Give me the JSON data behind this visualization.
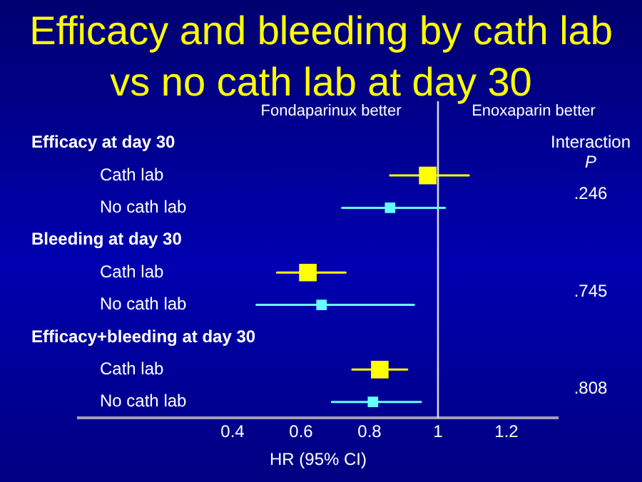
{
  "chart_data": {
    "type": "scatter",
    "title": "Efficacy and bleeding by cath lab vs no cath lab at day 30",
    "xlabel": "HR (95% CI)",
    "categories": [
      "Efficacy at day 30",
      "Cath lab",
      "No cath lab",
      "Bleeding at day 30",
      "Cath lab",
      "No cath lab",
      "Efficacy+bleeding at day 30",
      "Cath lab",
      "No cath lab"
    ],
    "series": [
      {
        "color": "#ffff00",
        "marker": "square",
        "values": [
          null,
          0.97,
          null,
          null,
          0.62,
          null,
          null,
          0.83,
          null
        ],
        "errors": [
          null,
          [
            0.86,
            1.09
          ],
          null,
          null,
          [
            0.53,
            0.73
          ],
          null,
          null,
          [
            0.75,
            0.91
          ],
          null
        ]
      },
      {
        "color": "#66ffff",
        "marker": "square",
        "values": [
          null,
          null,
          0.86,
          null,
          null,
          0.66,
          null,
          null,
          0.81
        ],
        "errors": [
          null,
          null,
          [
            0.72,
            1.02
          ],
          null,
          null,
          [
            0.47,
            0.93
          ],
          null,
          null,
          [
            0.69,
            0.95
          ]
        ]
      }
    ],
    "orientation": "horizontal",
    "xlim": [
      -0.05,
      1.35
    ],
    "xticks": [
      0.4,
      0.6,
      0.8,
      1,
      1.2
    ],
    "grid": false,
    "legend": false,
    "ref_lines": [
      {
        "axis": "x",
        "value": 1,
        "color": "#d8d8e8"
      }
    ],
    "annotations": [
      "Fondaparinux better",
      "Enoxaparin better",
      "Interaction",
      "P",
      ".246",
      ".745",
      ".808"
    ]
  }
}
